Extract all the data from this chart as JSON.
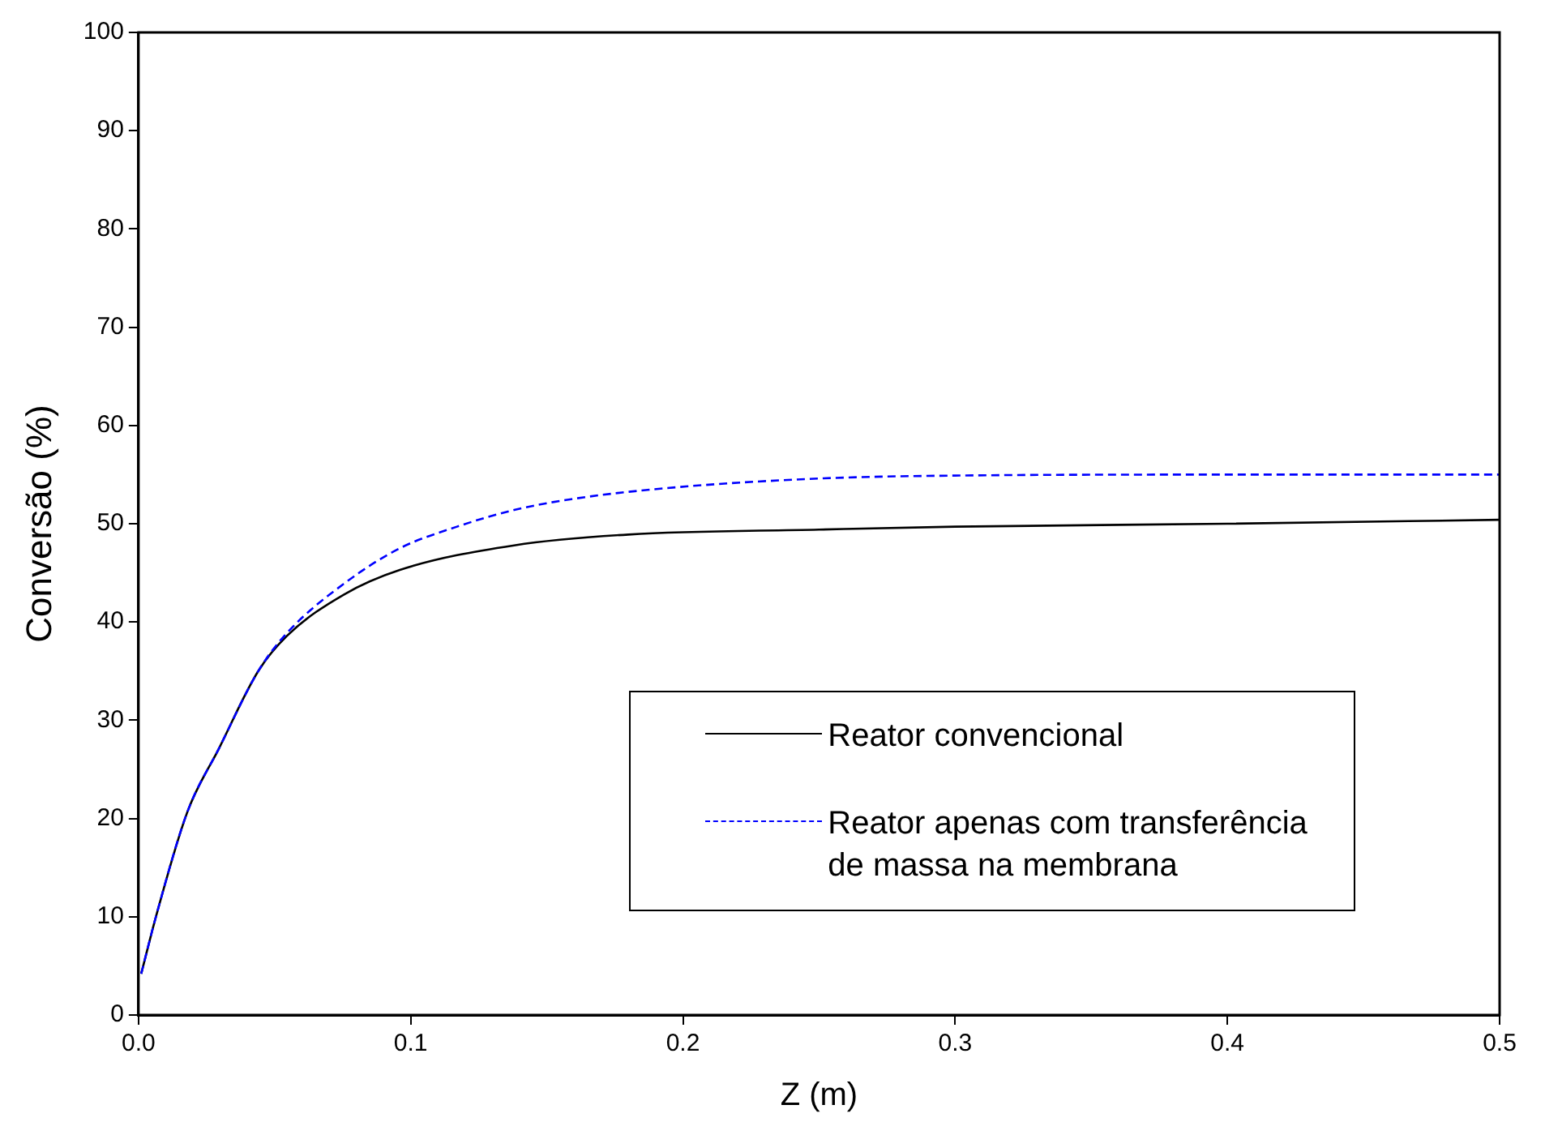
{
  "chart_data": {
    "type": "line",
    "xlabel": "Z (m)",
    "ylabel": "Conversão (%)",
    "xlim": [
      0,
      0.5
    ],
    "ylim": [
      0,
      100
    ],
    "xticks": [
      {
        "value": 0,
        "label": "0.0"
      },
      0.1,
      0.2,
      0.3,
      0.4,
      0.5
    ],
    "yticks": [
      0,
      10,
      20,
      30,
      40,
      50,
      60,
      70,
      80,
      90,
      100
    ],
    "grid": false,
    "legend": "bottom right",
    "marker": "none",
    "series": [
      {
        "name": "Reator convencional",
        "color": "#000000",
        "line_style": "solid",
        "x": [
          0.001,
          0.0065,
          0.018,
          0.0295,
          0.044,
          0.0546,
          0.0755,
          0.096,
          0.138,
          0.18,
          0.25,
          0.3,
          0.4,
          0.5
        ],
        "values": [
          4.2,
          10.1,
          20.7,
          27.1,
          35.0,
          38.6,
          42.8,
          45.3,
          47.8,
          48.9,
          49.4,
          49.7,
          50.0,
          50.4
        ]
      },
      {
        "name": "Reator apenas com transferência de massa na membrana",
        "color": "#0000ff",
        "line_style": "dashed",
        "x": [
          0.001,
          0.0065,
          0.018,
          0.0295,
          0.044,
          0.0546,
          0.0755,
          0.096,
          0.117,
          0.138,
          0.159,
          0.193,
          0.25,
          0.3,
          0.4,
          0.5
        ],
        "values": [
          4.2,
          10.1,
          20.7,
          27.1,
          35.0,
          38.9,
          43.9,
          47.5,
          49.7,
          51.4,
          52.5,
          53.6,
          54.6,
          54.9,
          55.0,
          55.0
        ]
      }
    ]
  }
}
